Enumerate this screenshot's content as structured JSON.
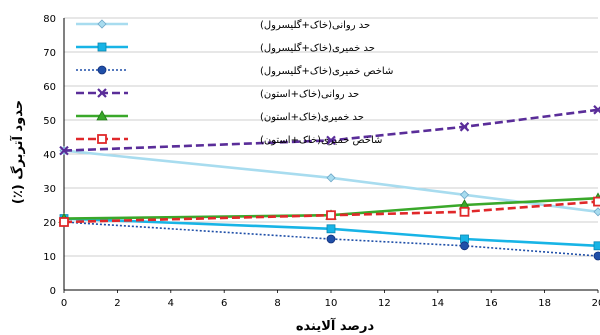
{
  "chart_data": {
    "type": "line",
    "xlabel": "درصد آلاینده",
    "ylabel": "حدود آتربرگ (٪)",
    "xlim": [
      0,
      20
    ],
    "ylim": [
      0,
      80
    ],
    "x_ticks": [
      0,
      2,
      4,
      6,
      8,
      10,
      12,
      14,
      16,
      18,
      20
    ],
    "y_ticks": [
      0,
      10,
      20,
      30,
      40,
      50,
      60,
      70,
      80
    ],
    "grid": true,
    "legend_position": "top-left",
    "series": [
      {
        "name": "حد روانی(خاک+گلیسرول)",
        "color": "#a8dcef",
        "dash": "solid",
        "marker": "diamond",
        "x": [
          0,
          10,
          15,
          20
        ],
        "values": [
          41,
          33,
          28,
          23
        ]
      },
      {
        "name": "حد خمیری(خاک+گلیسرول)",
        "color": "#18b4e6",
        "dash": "solid",
        "marker": "square",
        "x": [
          0,
          10,
          15,
          20
        ],
        "values": [
          21,
          18,
          15,
          13
        ]
      },
      {
        "name": "شاخص خمیری(خاک+گلیسرول)",
        "color": "#1f4fa8",
        "dash": "dotted",
        "marker": "circle",
        "x": [
          0,
          10,
          15,
          20
        ],
        "values": [
          20,
          15,
          13,
          10
        ]
      },
      {
        "name": "حد روانی(خاک+استون)",
        "color": "#5a2d99",
        "dash": "dashed",
        "marker": "x",
        "x": [
          0,
          10,
          15,
          20
        ],
        "values": [
          41,
          44,
          48,
          53
        ]
      },
      {
        "name": "حد خمیری(خاک+استون)",
        "color": "#3aa82a",
        "dash": "solid",
        "marker": "triangle",
        "x": [
          0,
          10,
          15,
          20
        ],
        "values": [
          21,
          22,
          25,
          27
        ]
      },
      {
        "name": "شاخص خمیری(خاک+استون)",
        "color": "#e0282a",
        "dash": "dashed",
        "marker": "square-open",
        "x": [
          0,
          10,
          15,
          20
        ],
        "values": [
          20,
          22,
          23,
          26
        ]
      }
    ]
  }
}
